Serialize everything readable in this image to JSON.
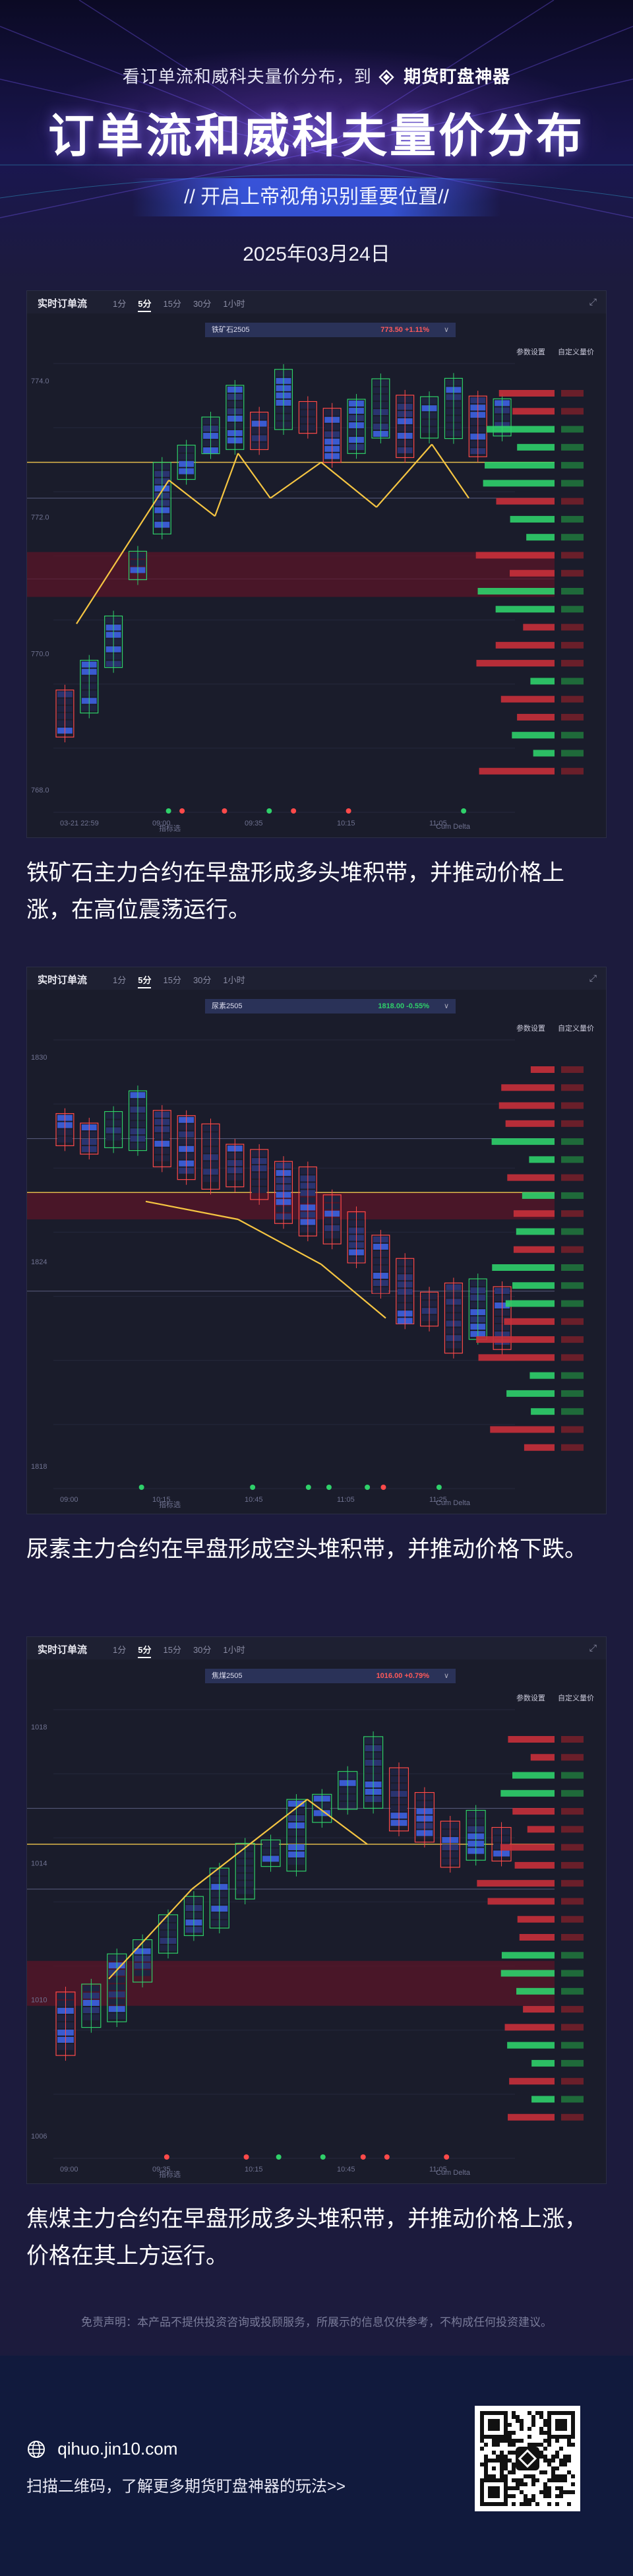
{
  "header": {
    "tagline_prefix": "看订单流和威科夫量价分布，到",
    "brand": "期货盯盘神器",
    "title": "订单流和威科夫量价分布",
    "subtitle": "// 开启上帝视角识别重要位置//",
    "date": "2025年03月24日"
  },
  "panel_ui": {
    "title": "实时订单流",
    "tabs": [
      "1分",
      "5分",
      "15分",
      "30分",
      "1小时"
    ],
    "active_tab": "5分",
    "settings": [
      "参数设置",
      "自定义量价"
    ],
    "dropdown_glyph": "∨",
    "expand_glyph": "⤢",
    "footer_left": "指标选",
    "footer_right": "Cum Delta"
  },
  "panels": [
    {
      "symbol": "铁矿石2505",
      "price_change": "773.50  +1.11%",
      "direction": "up",
      "caption": "铁矿石主力合约在早盘形成多头堆积带，并推动价格上涨，在高位震荡运行。",
      "times": [
        "03-21 22:59",
        "09:00",
        "09:35",
        "10:15",
        "11:05"
      ],
      "price_ticks": [
        "774.0",
        "772.0",
        "770.0",
        "768.0"
      ]
    },
    {
      "symbol": "尿素2505",
      "price_change": "1818.00  -0.55%",
      "direction": "down",
      "caption": "尿素主力合约在早盘形成空头堆积带，并推动价格下跌。",
      "times": [
        "09:00",
        "10:15",
        "10:45",
        "11:05",
        "11:25"
      ],
      "price_ticks": [
        "1830",
        "1824",
        "1818"
      ]
    },
    {
      "symbol": "焦煤2505",
      "price_change": "1016.00  +0.79%",
      "direction": "up",
      "caption": "焦煤主力合约在早盘形成多头堆积带，并推动价格上涨，价格在其上方运行。",
      "times": [
        "09:00",
        "09:35",
        "10:15",
        "10:45",
        "11:05"
      ],
      "price_ticks": [
        "1018",
        "1014",
        "1010",
        "1006"
      ]
    }
  ],
  "disclaimer": "免责声明：本产品不提供投资咨询或投顾服务，所展示的信息仅供参考，不构成任何投资建议。",
  "footer": {
    "url": "qihuo.jin10.com",
    "scan_text": "扫描二维码，了解更多期货盯盘神器的玩法>>"
  },
  "colors": {
    "background": "#1c1b3d",
    "buy": "#2fd06a",
    "sell": "#ff4a4a",
    "highlight": "#f5c542",
    "footer": "#111a3d"
  }
}
